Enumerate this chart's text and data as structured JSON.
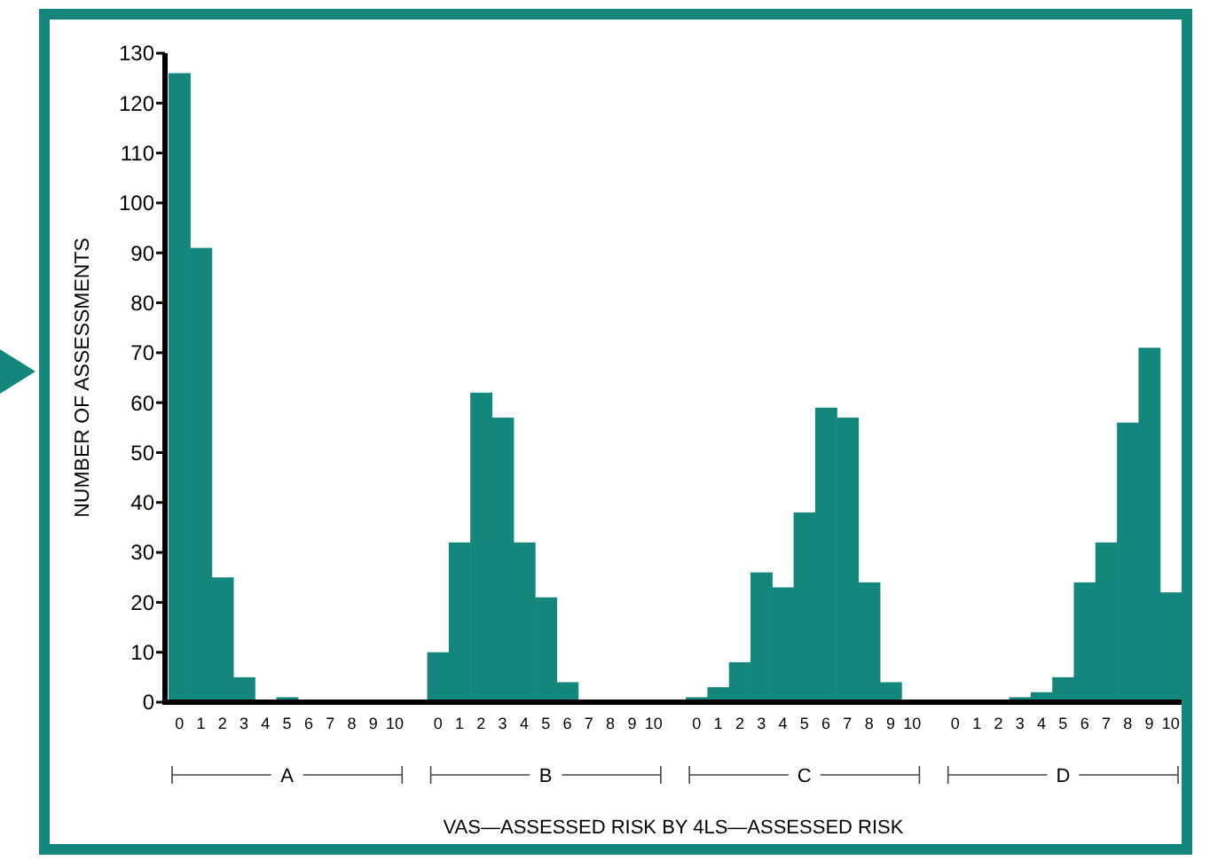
{
  "chart_data": {
    "type": "bar",
    "xlabel": "VAS—ASSESSED RISK BY 4LS—ASSESSED RISK",
    "ylabel": "NUMBER OF ASSESSMENTS",
    "categories": [
      "0",
      "1",
      "2",
      "3",
      "4",
      "5",
      "6",
      "7",
      "8",
      "9",
      "10",
      null,
      "0",
      "1",
      "2",
      "3",
      "4",
      "5",
      "6",
      "7",
      "8",
      "9",
      "10",
      null,
      "0",
      "1",
      "2",
      "3",
      "4",
      "5",
      "6",
      "7",
      "8",
      "9",
      "10",
      null,
      "0",
      "1",
      "2",
      "3",
      "4",
      "5",
      "6",
      "7",
      "8",
      "9",
      "10"
    ],
    "values": [
      126,
      91,
      25,
      5,
      0,
      1,
      0,
      0,
      0,
      0,
      0,
      null,
      10,
      32,
      62,
      57,
      32,
      21,
      4,
      0,
      0,
      0,
      0,
      null,
      1,
      3,
      8,
      26,
      23,
      38,
      59,
      57,
      24,
      4,
      0,
      null,
      0,
      0,
      0,
      1,
      2,
      5,
      24,
      32,
      56,
      71,
      22
    ],
    "color": "#14877d",
    "ylim": [
      0,
      130
    ],
    "yticks": [
      0,
      10,
      20,
      30,
      40,
      50,
      60,
      70,
      80,
      90,
      100,
      110,
      120,
      130
    ],
    "annotations": [
      "A",
      "B",
      "C",
      "D"
    ]
  }
}
